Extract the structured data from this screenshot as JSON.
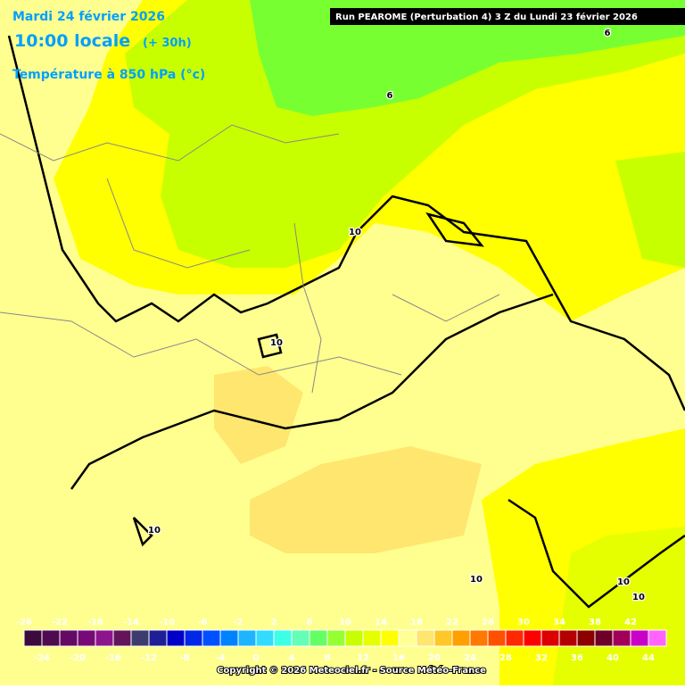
{
  "header": {
    "date": "Mardi 24 février 2026",
    "time": "10:00 locale",
    "lead": "(+ 30h)",
    "variable": "Température à 850 hPa (°c)",
    "run": "Run PEAROME (Perturbation 4) 3 Z du Lundi 23 février 2026"
  },
  "contour_labels": [
    "6",
    "6",
    "10",
    "10",
    "10",
    "10",
    "10",
    "10"
  ],
  "colorbar": {
    "ticks": [
      -26,
      -24,
      -22,
      -20,
      -18,
      -16,
      -14,
      -12,
      -10,
      -8,
      -6,
      -4,
      -2,
      0,
      2,
      4,
      6,
      8,
      10,
      12,
      14,
      16,
      18,
      20,
      22,
      24,
      26,
      28,
      30,
      32,
      34,
      36,
      38,
      40,
      42,
      44
    ],
    "colors": [
      "#3c0a3c",
      "#500a50",
      "#640a64",
      "#780a78",
      "#8c148c",
      "#64145a",
      "#3c3c6e",
      "#1e1e96",
      "#0000c8",
      "#0028e6",
      "#0050ff",
      "#0082ff",
      "#1eb4ff",
      "#32dcff",
      "#3cffe6",
      "#64ffb4",
      "#64ff64",
      "#96ff32",
      "#c8ff00",
      "#e6ff00",
      "#ffff00",
      "#ffff96",
      "#ffe66e",
      "#ffc828",
      "#ffa000",
      "#ff7800",
      "#ff5000",
      "#ff2800",
      "#ff0000",
      "#dc0000",
      "#b40000",
      "#8c0000",
      "#6e0028",
      "#a0005a",
      "#c800c8",
      "#ff64ff"
    ]
  },
  "copyright": "Copyright © 2026 Meteociel.fr - Source Météo-France"
}
